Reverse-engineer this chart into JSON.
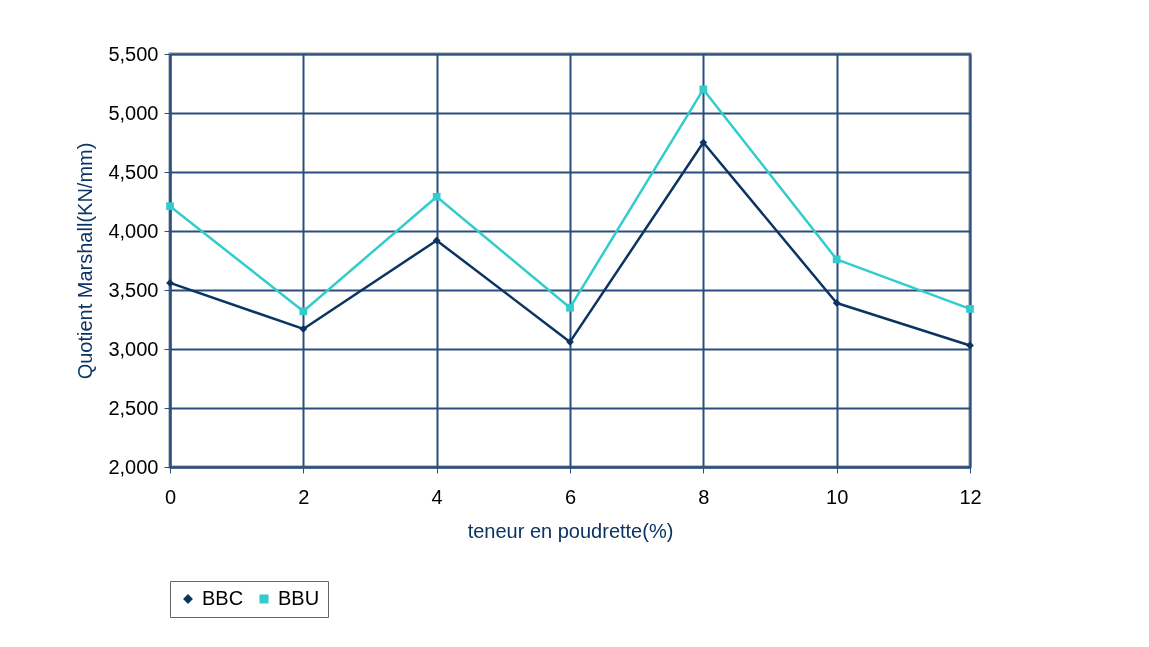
{
  "chart_data": {
    "type": "line",
    "xlabel": "teneur en poudrette(%)",
    "ylabel": "Quotient Marshall(KN/mm)",
    "x": [
      0,
      2,
      4,
      6,
      8,
      10,
      12
    ],
    "series": [
      {
        "name": "BBC",
        "color": "#0b3463",
        "marker": "diamond",
        "values": [
          3560,
          3170,
          3920,
          3060,
          4750,
          3390,
          3030
        ]
      },
      {
        "name": "BBU",
        "color": "#33cccc",
        "marker": "square",
        "values": [
          4210,
          3320,
          4290,
          3350,
          5200,
          3760,
          3340
        ]
      }
    ],
    "xlim": [
      0,
      12
    ],
    "xticks": [
      0,
      2,
      4,
      6,
      8,
      10,
      12
    ],
    "ylim": [
      2000,
      5500
    ],
    "yticks": [
      {
        "value": 2000,
        "label": "2,000"
      },
      {
        "value": 2500,
        "label": "2,500"
      },
      {
        "value": 3000,
        "label": "3,000"
      },
      {
        "value": 3500,
        "label": "3,500"
      },
      {
        "value": 4000,
        "label": "4,000"
      },
      {
        "value": 4500,
        "label": "4,500"
      },
      {
        "value": 5000,
        "label": "5,000"
      },
      {
        "value": 5500,
        "label": "5,500"
      }
    ],
    "grid": true,
    "legend": "bottom",
    "line_style": "solid"
  }
}
